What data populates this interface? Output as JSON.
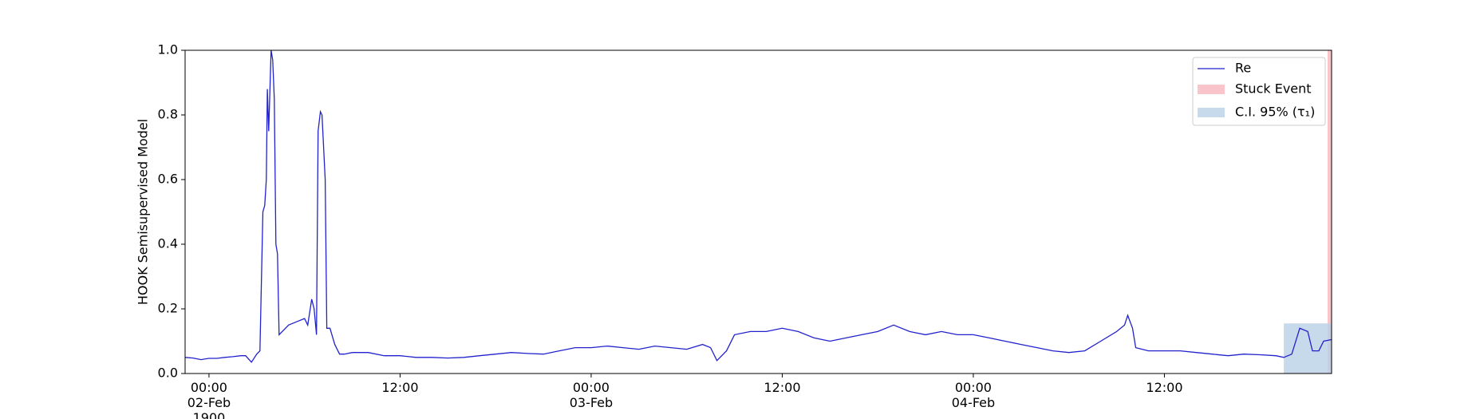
{
  "chart_data": {
    "type": "line",
    "ylabel": "HOOK Semisupervised Model",
    "xlim": [
      "1900-02-01T22:30",
      "1900-02-04T22:30"
    ],
    "xticks": [
      {
        "value": "1900-02-02T00:00",
        "label": "00:00\n02-Feb\n1900"
      },
      {
        "value": "1900-02-02T12:00",
        "label": "12:00"
      },
      {
        "value": "1900-02-03T00:00",
        "label": "00:00\n03-Feb"
      },
      {
        "value": "1900-02-03T12:00",
        "label": "12:00"
      },
      {
        "value": "1900-02-04T00:00",
        "label": "00:00\n04-Feb"
      },
      {
        "value": "1900-02-04T12:00",
        "label": "12:00"
      }
    ],
    "ylim": [
      0,
      1
    ],
    "yticks": [
      {
        "value": 0,
        "label": "0.0"
      },
      {
        "value": 0.2,
        "label": "0.2"
      },
      {
        "value": 0.4,
        "label": "0.4"
      },
      {
        "value": 0.6,
        "label": "0.6"
      },
      {
        "value": 0.8,
        "label": "0.8"
      },
      {
        "value": 1,
        "label": "1.0"
      }
    ],
    "legend": "upper right",
    "x": [
      "1900-02-01T22:30",
      "1900-02-01T23:00",
      "1900-02-01T23:30",
      "1900-02-02T00:00",
      "1900-02-02T00:30",
      "1900-02-02T01:00",
      "1900-02-02T01:30",
      "1900-02-02T02:00",
      "1900-02-02T02:18",
      "1900-02-02T02:40",
      "1900-02-02T03:00",
      "1900-02-02T03:12",
      "1900-02-02T03:23",
      "1900-02-02T03:30",
      "1900-02-02T03:36",
      "1900-02-02T03:40",
      "1900-02-02T03:45",
      "1900-02-02T03:54",
      "1900-02-02T04:00",
      "1900-02-02T04:06",
      "1900-02-02T04:12",
      "1900-02-02T04:18",
      "1900-02-02T04:24",
      "1900-02-02T05:00",
      "1900-02-02T05:30",
      "1900-02-02T06:00",
      "1900-02-02T06:12",
      "1900-02-02T06:27",
      "1900-02-02T06:36",
      "1900-02-02T06:45",
      "1900-02-02T06:51",
      "1900-02-02T07:00",
      "1900-02-02T07:06",
      "1900-02-02T07:18",
      "1900-02-02T07:24",
      "1900-02-02T07:36",
      "1900-02-02T07:54",
      "1900-02-02T08:12",
      "1900-02-02T08:30",
      "1900-02-02T09:00",
      "1900-02-02T10:00",
      "1900-02-02T11:00",
      "1900-02-02T12:00",
      "1900-02-02T13:00",
      "1900-02-02T14:00",
      "1900-02-02T15:00",
      "1900-02-02T16:00",
      "1900-02-02T17:00",
      "1900-02-02T18:00",
      "1900-02-02T19:00",
      "1900-02-02T20:00",
      "1900-02-02T21:00",
      "1900-02-02T22:00",
      "1900-02-02T23:00",
      "1900-02-03T00:00",
      "1900-02-03T01:00",
      "1900-02-03T02:00",
      "1900-02-03T03:00",
      "1900-02-03T04:00",
      "1900-02-03T05:00",
      "1900-02-03T06:00",
      "1900-02-03T07:00",
      "1900-02-03T07:30",
      "1900-02-03T07:54",
      "1900-02-03T08:30",
      "1900-02-03T09:00",
      "1900-02-03T10:00",
      "1900-02-03T11:00",
      "1900-02-03T12:00",
      "1900-02-03T13:00",
      "1900-02-03T14:00",
      "1900-02-03T15:00",
      "1900-02-03T16:00",
      "1900-02-03T17:00",
      "1900-02-03T18:00",
      "1900-02-03T19:00",
      "1900-02-03T20:00",
      "1900-02-03T21:00",
      "1900-02-03T22:00",
      "1900-02-03T23:00",
      "1900-02-04T00:00",
      "1900-02-04T01:00",
      "1900-02-04T02:00",
      "1900-02-04T03:00",
      "1900-02-04T04:00",
      "1900-02-04T05:00",
      "1900-02-04T06:00",
      "1900-02-04T07:00",
      "1900-02-04T08:00",
      "1900-02-04T09:00",
      "1900-02-04T09:30",
      "1900-02-04T09:42",
      "1900-02-04T10:00",
      "1900-02-04T10:12",
      "1900-02-04T11:00",
      "1900-02-04T12:00",
      "1900-02-04T13:00",
      "1900-02-04T14:00",
      "1900-02-04T15:00",
      "1900-02-04T16:00",
      "1900-02-04T17:00",
      "1900-02-04T18:00",
      "1900-02-04T19:00",
      "1900-02-04T19:30",
      "1900-02-04T20:00",
      "1900-02-04T20:30",
      "1900-02-04T21:00",
      "1900-02-04T21:18",
      "1900-02-04T21:42",
      "1900-02-04T22:00",
      "1900-02-04T22:30"
    ],
    "series": [
      {
        "name": "Re",
        "color": "#2222cc",
        "values": [
          0.05,
          0.048,
          0.043,
          0.047,
          0.047,
          0.05,
          0.052,
          0.055,
          0.055,
          0.035,
          0.06,
          0.07,
          0.5,
          0.52,
          0.6,
          0.88,
          0.75,
          1.0,
          0.97,
          0.85,
          0.4,
          0.37,
          0.12,
          0.15,
          0.16,
          0.17,
          0.15,
          0.23,
          0.2,
          0.12,
          0.75,
          0.81,
          0.8,
          0.6,
          0.14,
          0.14,
          0.09,
          0.06,
          0.06,
          0.065,
          0.065,
          0.055,
          0.055,
          0.05,
          0.05,
          0.048,
          0.05,
          0.055,
          0.06,
          0.065,
          0.062,
          0.06,
          0.07,
          0.08,
          0.08,
          0.085,
          0.08,
          0.075,
          0.085,
          0.08,
          0.075,
          0.09,
          0.08,
          0.04,
          0.07,
          0.12,
          0.13,
          0.13,
          0.14,
          0.13,
          0.11,
          0.1,
          0.11,
          0.12,
          0.13,
          0.15,
          0.13,
          0.12,
          0.13,
          0.12,
          0.12,
          0.11,
          0.1,
          0.09,
          0.08,
          0.07,
          0.065,
          0.07,
          0.1,
          0.13,
          0.15,
          0.18,
          0.14,
          0.08,
          0.07,
          0.07,
          0.07,
          0.065,
          0.06,
          0.055,
          0.06,
          0.058,
          0.055,
          0.05,
          0.06,
          0.14,
          0.13,
          0.07,
          0.07,
          0.1,
          0.105
        ]
      }
    ],
    "bands": [
      {
        "name": "Stuck Event",
        "color": "#f7b6bd",
        "x": [
          "1900-02-04T22:15",
          "1900-02-04T22:30"
        ],
        "y": [
          0,
          1
        ]
      },
      {
        "name": "C.I. 95% (τ₁)",
        "color": "#b9d1e7",
        "x": [
          "1900-02-04T19:30",
          "1900-02-04T22:30"
        ],
        "y": [
          0,
          0.155
        ]
      }
    ]
  }
}
